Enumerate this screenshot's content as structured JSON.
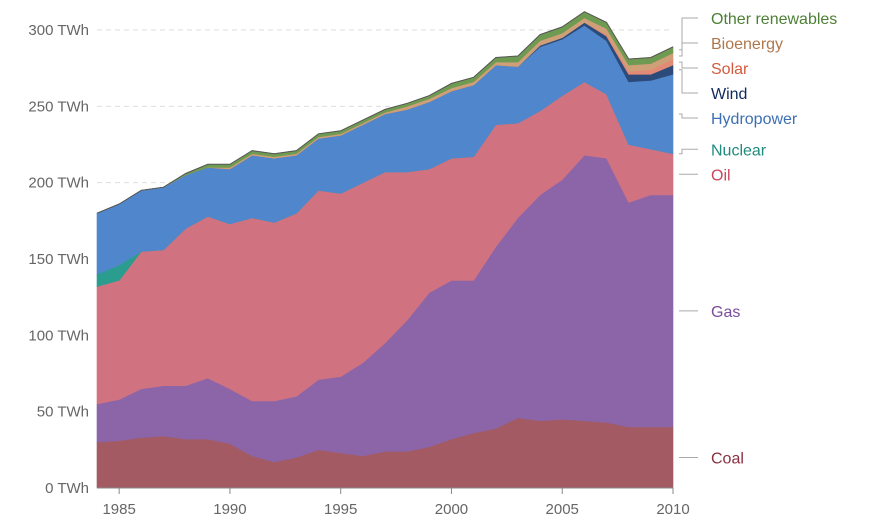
{
  "chart_data": {
    "type": "area",
    "stacked": true,
    "title": "",
    "xlabel": "",
    "ylabel": "",
    "xlim": [
      1984,
      2010
    ],
    "ylim": [
      0,
      300
    ],
    "grid": true,
    "legend": "right",
    "x": [
      1984,
      1985,
      1986,
      1987,
      1988,
      1989,
      1990,
      1991,
      1992,
      1993,
      1994,
      1995,
      1996,
      1997,
      1998,
      1999,
      2000,
      2001,
      2002,
      2003,
      2004,
      2005,
      2006,
      2007,
      2008,
      2009,
      2010
    ],
    "y_ticks": [
      {
        "value": 0,
        "label": "0 TWh"
      },
      {
        "value": 50,
        "label": "50 TWh"
      },
      {
        "value": 100,
        "label": "100 TWh"
      },
      {
        "value": 150,
        "label": "150 TWh"
      },
      {
        "value": 200,
        "label": "200 TWh"
      },
      {
        "value": 250,
        "label": "250 TWh"
      },
      {
        "value": 300,
        "label": "300 TWh"
      }
    ],
    "x_ticks": [
      {
        "value": 1985,
        "label": "1985"
      },
      {
        "value": 1990,
        "label": "1990"
      },
      {
        "value": 1995,
        "label": "1995"
      },
      {
        "value": 2000,
        "label": "2000"
      },
      {
        "value": 2005,
        "label": "2005"
      },
      {
        "value": 2010,
        "label": "2010"
      }
    ],
    "series": [
      {
        "name": "Coal",
        "color": "#a35a62",
        "label_color": "#8a2f3f",
        "values": [
          30,
          31,
          33,
          34,
          32,
          32,
          29,
          21,
          17,
          20,
          25,
          23,
          21,
          24,
          24,
          27,
          32,
          36,
          39,
          46,
          44,
          45,
          44,
          43,
          40,
          40,
          40
        ]
      },
      {
        "name": "Gas",
        "color": "#8b65a8",
        "label_color": "#7a4d9a",
        "values": [
          25,
          27,
          32,
          33,
          35,
          40,
          36,
          36,
          40,
          40,
          46,
          50,
          61,
          71,
          86,
          101,
          104,
          100,
          119,
          131,
          148,
          157,
          174,
          173,
          147,
          152,
          152
        ]
      },
      {
        "name": "Oil",
        "color": "#d17280",
        "label_color": "#c8475a",
        "values": [
          77,
          78,
          90,
          89,
          103,
          106,
          108,
          120,
          117,
          120,
          124,
          120,
          118,
          112,
          97,
          81,
          80,
          81,
          80,
          62,
          55,
          55,
          48,
          42,
          38,
          30,
          27
        ]
      },
      {
        "name": "Nuclear",
        "color": "#2a9d8f",
        "label_color": "#1f8a7e",
        "values": [
          8,
          10,
          0,
          0,
          0,
          0,
          0,
          0,
          0,
          0,
          0,
          0,
          0,
          0,
          0,
          0,
          0,
          0,
          0,
          0,
          0,
          0,
          0,
          0,
          0,
          0,
          0
        ]
      },
      {
        "name": "Hydropower",
        "color": "#5087cc",
        "label_color": "#3c6fb3",
        "values": [
          40,
          40,
          40,
          41,
          35,
          32,
          36,
          41,
          42,
          38,
          34,
          38,
          38,
          38,
          41,
          44,
          44,
          47,
          39,
          37,
          42,
          37,
          37,
          35,
          41,
          45,
          52
        ]
      },
      {
        "name": "Wind",
        "color": "#2c4b7a",
        "label_color": "#102a5c",
        "values": [
          0,
          0,
          0,
          0,
          0,
          0,
          0,
          0,
          0,
          0,
          0,
          0,
          0,
          0,
          0,
          0,
          0,
          0,
          0,
          0,
          1,
          1,
          2,
          3,
          5,
          4,
          6
        ]
      },
      {
        "name": "Solar",
        "color": "#e38a76",
        "label_color": "#d4593e",
        "values": [
          0,
          0,
          0,
          0,
          0,
          0,
          0,
          0,
          0,
          0,
          0,
          0,
          0,
          0,
          0,
          0,
          0,
          0,
          0,
          0,
          0,
          0,
          0,
          1,
          2,
          3,
          4
        ]
      },
      {
        "name": "Bioenergy",
        "color": "#cf9f77",
        "label_color": "#b0774b",
        "values": [
          0,
          0,
          0,
          0,
          0,
          0,
          1,
          1,
          1,
          1,
          1,
          1,
          1,
          1,
          2,
          2,
          2,
          2,
          2,
          3,
          3,
          3,
          3,
          4,
          4,
          4,
          4
        ]
      },
      {
        "name": "Other renewables",
        "color": "#6f9a52",
        "label_color": "#4d7f35",
        "values": [
          0,
          0,
          0,
          0,
          1,
          2,
          2,
          2,
          2,
          2,
          2,
          2,
          2,
          2,
          2,
          2,
          3,
          3,
          3,
          4,
          4,
          4,
          4,
          4,
          4,
          4,
          4
        ]
      }
    ]
  }
}
